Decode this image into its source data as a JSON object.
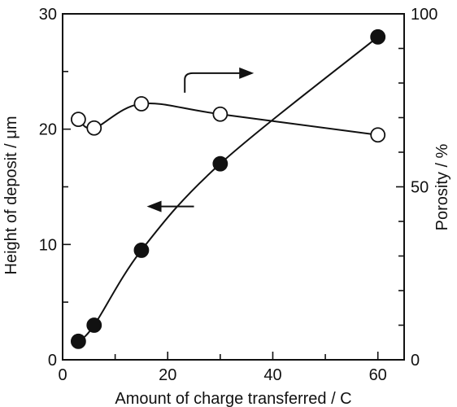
{
  "chart_data": {
    "type": "line",
    "xlabel": "Amount of charge transferred / C",
    "ylabel": "Height of deposit / μm",
    "ylabel_right": "Porosity / %",
    "xlim": [
      0,
      65
    ],
    "ylim": [
      0,
      30
    ],
    "ylim_right": [
      0,
      100
    ],
    "xticks": [
      0,
      20,
      40,
      60
    ],
    "yticks": [
      0,
      10,
      20,
      30
    ],
    "yticks_right": [
      0,
      50,
      100
    ],
    "grid": false,
    "series": [
      {
        "axis": "left",
        "marker": "filled-circle",
        "x": [
          3,
          6,
          15,
          30,
          60
        ],
        "y": [
          1.6,
          3.0,
          9.5,
          17.0,
          28.0
        ]
      },
      {
        "axis": "right",
        "marker": "open-circle",
        "x": [
          3,
          6,
          15,
          30,
          60
        ],
        "y": [
          69.5,
          67.0,
          74.0,
          71.0,
          65.0
        ]
      }
    ],
    "annotations": [
      {
        "type": "arrow",
        "direction": "left",
        "points_to": "left axis",
        "near": [
          25,
          13.3
        ]
      },
      {
        "type": "arrow",
        "direction": "right",
        "points_to": "right axis",
        "near": [
          33,
          25
        ]
      }
    ],
    "colors": {
      "line": "#111111",
      "marker_fill": "#111111",
      "open_marker_fill": "#ffffff"
    }
  }
}
